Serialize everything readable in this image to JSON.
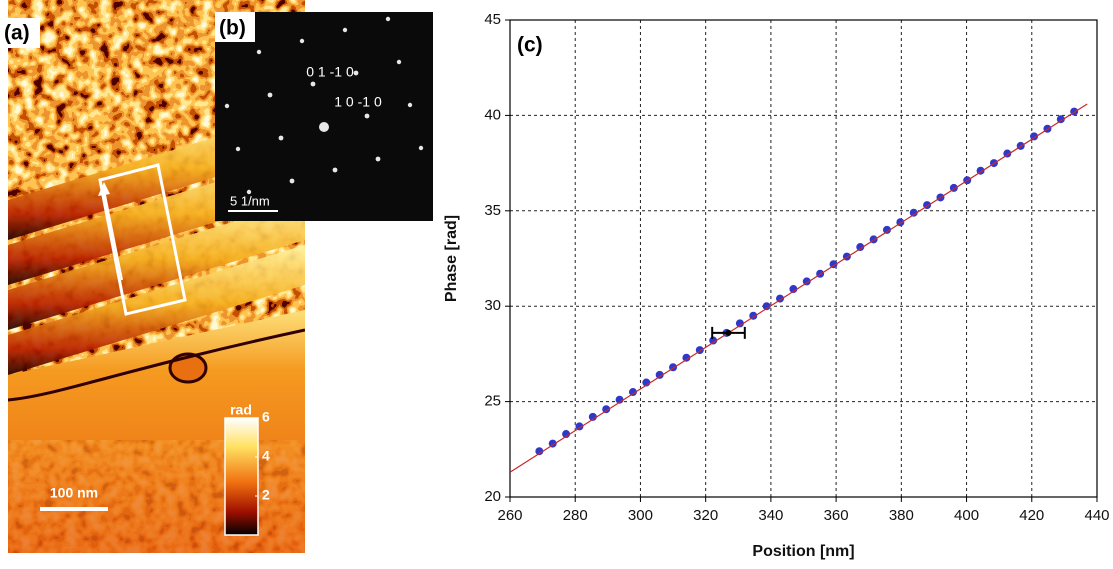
{
  "panel_a": {
    "label": "(a)",
    "scale_bar": "100 nm",
    "colorbar": {
      "title": "rad",
      "lim": [
        0,
        6
      ],
      "ticks": [
        2,
        4,
        6
      ]
    }
  },
  "panel_b": {
    "label": "(b)",
    "spot_labels": [
      "0 1 -1 0",
      "1 0 -1 0"
    ],
    "scale_bar": "5 1/nm"
  },
  "chart_data": {
    "type": "scatter",
    "label": "(c)",
    "xlabel": "Position [nm]",
    "ylabel": "Phase [rad]",
    "xlim": [
      260,
      440
    ],
    "ylim": [
      20,
      45
    ],
    "xticks": [
      260,
      280,
      300,
      320,
      340,
      360,
      380,
      400,
      420,
      440
    ],
    "yticks": [
      20,
      25,
      30,
      35,
      40,
      45
    ],
    "grid": true,
    "series": [
      {
        "color": "#2f39c9",
        "marker": "circle",
        "x": [
          269.0,
          273.1,
          277.2,
          281.3,
          285.4,
          289.5,
          293.6,
          297.7,
          301.8,
          305.9,
          310.0,
          314.1,
          318.2,
          322.3,
          326.4,
          330.5,
          334.6,
          338.7,
          342.8,
          346.9,
          351.0,
          355.1,
          359.2,
          363.3,
          367.4,
          371.5,
          375.6,
          379.7,
          383.8,
          387.9,
          392.0,
          396.1,
          400.2,
          404.3,
          408.4,
          412.5,
          416.6,
          420.7,
          424.8,
          428.9,
          433.0
        ],
        "values": [
          22.4,
          22.8,
          23.3,
          23.7,
          24.2,
          24.6,
          25.1,
          25.5,
          26.0,
          26.4,
          26.8,
          27.3,
          27.7,
          28.2,
          28.6,
          29.1,
          29.5,
          30.0,
          30.4,
          30.9,
          31.3,
          31.7,
          32.2,
          32.6,
          33.1,
          33.5,
          34.0,
          34.4,
          34.9,
          35.3,
          35.7,
          36.2,
          36.6,
          37.1,
          37.5,
          38.0,
          38.4,
          38.9,
          39.3,
          39.8,
          40.2
        ]
      },
      {
        "color": "#c8282a",
        "style": "line",
        "x": [
          260,
          437
        ],
        "values": [
          21.3,
          40.6
        ]
      }
    ],
    "errorbar": {
      "x": 327,
      "y": 28.6,
      "xerr": 5,
      "color": "#000000"
    }
  }
}
